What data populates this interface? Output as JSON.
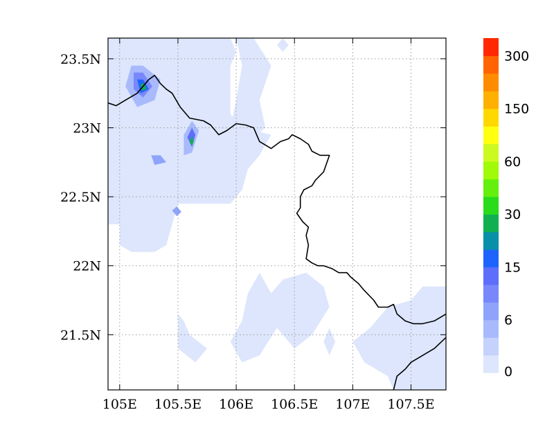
{
  "chart_data": {
    "type": "heatmap",
    "title": "",
    "xlabel": "",
    "ylabel": "",
    "xlim": [
      104.9,
      107.8
    ],
    "ylim": [
      21.1,
      23.65
    ],
    "x_ticks": [
      {
        "value": 105.0,
        "label": "105E"
      },
      {
        "value": 105.5,
        "label": "105.5E"
      },
      {
        "value": 106.0,
        "label": "106E"
      },
      {
        "value": 106.5,
        "label": "106.5E"
      },
      {
        "value": 107.0,
        "label": "107E"
      },
      {
        "value": 107.5,
        "label": "107.5E"
      }
    ],
    "y_ticks": [
      {
        "value": 21.5,
        "label": "21.5N"
      },
      {
        "value": 22.0,
        "label": "22N"
      },
      {
        "value": 22.5,
        "label": "22.5N"
      },
      {
        "value": 23.0,
        "label": "23N"
      },
      {
        "value": 23.5,
        "label": "23.5N"
      }
    ],
    "grid": true,
    "colorbar": {
      "placement": "right",
      "colors": [
        "#dde6fc",
        "#c4d2fc",
        "#a8bafc",
        "#8ea4fc",
        "#7888fc",
        "#5e6efc",
        "#1e64fc",
        "#0890a8",
        "#10b050",
        "#28dc1c",
        "#64f00c",
        "#a0fa08",
        "#ccfa20",
        "#ffff10",
        "#ffd800",
        "#ffb000",
        "#ff8c00",
        "#ff6400",
        "#ff2800"
      ],
      "labels": [
        {
          "value": 0,
          "label": "0"
        },
        {
          "value": 6,
          "label": "6"
        },
        {
          "value": 15,
          "label": "15"
        },
        {
          "value": 30,
          "label": "30"
        },
        {
          "value": 60,
          "label": "60"
        },
        {
          "value": 150,
          "label": "150"
        },
        {
          "value": 300,
          "label": "300"
        }
      ]
    },
    "regions": [
      {
        "name": "northwest",
        "level": 0,
        "points": [
          [
            104.9,
            23.65
          ],
          [
            105.95,
            23.65
          ],
          [
            106.0,
            23.55
          ],
          [
            105.95,
            23.45
          ],
          [
            105.95,
            23.1
          ],
          [
            106.05,
            23.0
          ],
          [
            106.3,
            22.95
          ],
          [
            106.2,
            22.8
          ],
          [
            106.1,
            22.7
          ],
          [
            106.05,
            22.55
          ],
          [
            105.95,
            22.45
          ],
          [
            105.5,
            22.45
          ],
          [
            105.45,
            22.3
          ],
          [
            105.4,
            22.15
          ],
          [
            105.3,
            22.1
          ],
          [
            105.1,
            22.1
          ],
          [
            105.0,
            22.15
          ],
          [
            105.0,
            22.3
          ],
          [
            104.9,
            22.3
          ]
        ]
      },
      {
        "name": "north-hole-blob",
        "level": 0,
        "points": [
          [
            106.0,
            23.65
          ],
          [
            106.15,
            23.65
          ],
          [
            106.3,
            23.45
          ],
          [
            106.2,
            23.2
          ],
          [
            106.25,
            23.0
          ],
          [
            106.1,
            22.9
          ],
          [
            105.95,
            23.0
          ],
          [
            106.0,
            23.2
          ],
          [
            106.05,
            23.45
          ]
        ]
      },
      {
        "name": "north-islet",
        "level": 0,
        "points": [
          [
            106.35,
            23.6
          ],
          [
            106.4,
            23.65
          ],
          [
            106.45,
            23.6
          ],
          [
            106.4,
            23.55
          ]
        ]
      },
      {
        "name": "southwest-patch",
        "level": 0,
        "points": [
          [
            105.5,
            21.65
          ],
          [
            105.55,
            21.6
          ],
          [
            105.6,
            21.5
          ],
          [
            105.75,
            21.4
          ],
          [
            105.65,
            21.3
          ],
          [
            105.5,
            21.4
          ]
        ]
      },
      {
        "name": "south-central-patch",
        "level": 0,
        "points": [
          [
            105.95,
            21.45
          ],
          [
            106.05,
            21.3
          ],
          [
            106.2,
            21.35
          ],
          [
            106.35,
            21.55
          ],
          [
            106.5,
            21.4
          ],
          [
            106.65,
            21.5
          ],
          [
            106.8,
            21.7
          ],
          [
            106.75,
            21.85
          ],
          [
            106.6,
            21.95
          ],
          [
            106.4,
            21.9
          ],
          [
            106.3,
            21.8
          ],
          [
            106.2,
            21.95
          ],
          [
            106.1,
            21.8
          ],
          [
            106.05,
            21.6
          ]
        ]
      },
      {
        "name": "south-mid-patch",
        "level": 0,
        "points": [
          [
            106.75,
            21.45
          ],
          [
            106.8,
            21.35
          ],
          [
            106.85,
            21.45
          ],
          [
            106.8,
            21.55
          ]
        ]
      },
      {
        "name": "southeast-patch",
        "level": 0,
        "points": [
          [
            107.8,
            21.85
          ],
          [
            107.6,
            21.85
          ],
          [
            107.5,
            21.75
          ],
          [
            107.3,
            21.7
          ],
          [
            107.15,
            21.55
          ],
          [
            107.0,
            21.45
          ],
          [
            107.1,
            21.3
          ],
          [
            107.3,
            21.2
          ],
          [
            107.35,
            21.1
          ],
          [
            107.8,
            21.1
          ]
        ]
      },
      {
        "name": "core-a-1",
        "level": 2,
        "points": [
          [
            105.1,
            23.45
          ],
          [
            105.2,
            23.45
          ],
          [
            105.35,
            23.35
          ],
          [
            105.3,
            23.2
          ],
          [
            105.15,
            23.15
          ],
          [
            105.05,
            23.3
          ]
        ]
      },
      {
        "name": "core-a-2",
        "level": 4,
        "points": [
          [
            105.12,
            23.4
          ],
          [
            105.2,
            23.4
          ],
          [
            105.28,
            23.3
          ],
          [
            105.2,
            23.22
          ],
          [
            105.12,
            23.28
          ]
        ]
      },
      {
        "name": "core-a-3",
        "level": 6,
        "points": [
          [
            105.15,
            23.35
          ],
          [
            105.2,
            23.35
          ],
          [
            105.25,
            23.28
          ],
          [
            105.18,
            23.25
          ]
        ]
      },
      {
        "name": "core-a-4",
        "level": 8,
        "points": [
          [
            105.18,
            23.32
          ],
          [
            105.21,
            23.32
          ],
          [
            105.23,
            23.28
          ],
          [
            105.19,
            23.27
          ]
        ]
      },
      {
        "name": "core-b-1",
        "level": 2,
        "points": [
          [
            105.55,
            22.95
          ],
          [
            105.62,
            23.05
          ],
          [
            105.68,
            22.98
          ],
          [
            105.62,
            22.82
          ],
          [
            105.55,
            22.8
          ]
        ]
      },
      {
        "name": "core-b-2",
        "level": 5,
        "points": [
          [
            105.58,
            22.93
          ],
          [
            105.62,
            23.0
          ],
          [
            105.65,
            22.95
          ],
          [
            105.62,
            22.86
          ]
        ]
      },
      {
        "name": "core-b-3",
        "level": 8,
        "points": [
          [
            105.6,
            22.9
          ],
          [
            105.62,
            22.94
          ],
          [
            105.635,
            22.9
          ],
          [
            105.62,
            22.87
          ]
        ]
      },
      {
        "name": "core-c-1",
        "level": 3,
        "points": [
          [
            105.27,
            22.8
          ],
          [
            105.35,
            22.8
          ],
          [
            105.4,
            22.75
          ],
          [
            105.3,
            22.73
          ]
        ]
      },
      {
        "name": "core-d-1",
        "level": 3,
        "points": [
          [
            105.45,
            22.4
          ],
          [
            105.49,
            22.43
          ],
          [
            105.53,
            22.39
          ],
          [
            105.49,
            22.36
          ]
        ]
      }
    ],
    "boundary": [
      [
        104.9,
        23.18
      ],
      [
        104.97,
        23.16
      ],
      [
        105.05,
        23.2
      ],
      [
        105.15,
        23.25
      ],
      [
        105.2,
        23.3
      ],
      [
        105.25,
        23.35
      ],
      [
        105.3,
        23.38
      ],
      [
        105.35,
        23.32
      ],
      [
        105.4,
        23.28
      ],
      [
        105.45,
        23.25
      ],
      [
        105.52,
        23.15
      ],
      [
        105.6,
        23.07
      ],
      [
        105.72,
        23.05
      ],
      [
        105.78,
        23.02
      ],
      [
        105.85,
        22.95
      ],
      [
        105.92,
        22.98
      ],
      [
        106.0,
        23.03
      ],
      [
        106.08,
        23.02
      ],
      [
        106.15,
        23.0
      ],
      [
        106.2,
        22.9
      ],
      [
        106.3,
        22.85
      ],
      [
        106.38,
        22.9
      ],
      [
        106.45,
        22.92
      ],
      [
        106.48,
        22.95
      ],
      [
        106.55,
        22.92
      ],
      [
        106.62,
        22.88
      ],
      [
        106.65,
        22.83
      ],
      [
        106.72,
        22.8
      ],
      [
        106.8,
        22.8
      ],
      [
        106.75,
        22.68
      ],
      [
        106.68,
        22.62
      ],
      [
        106.65,
        22.58
      ],
      [
        106.58,
        22.55
      ],
      [
        106.55,
        22.5
      ],
      [
        106.55,
        22.42
      ],
      [
        106.52,
        22.38
      ],
      [
        106.57,
        22.32
      ],
      [
        106.62,
        22.28
      ],
      [
        106.6,
        22.22
      ],
      [
        106.62,
        22.15
      ],
      [
        106.6,
        22.05
      ],
      [
        106.65,
        22.02
      ],
      [
        106.7,
        22.0
      ],
      [
        106.75,
        22.0
      ],
      [
        106.82,
        21.98
      ],
      [
        106.88,
        21.95
      ],
      [
        106.95,
        21.95
      ],
      [
        106.98,
        21.92
      ],
      [
        107.05,
        21.87
      ],
      [
        107.1,
        21.82
      ],
      [
        107.18,
        21.75
      ],
      [
        107.22,
        21.7
      ],
      [
        107.3,
        21.7
      ],
      [
        107.35,
        21.72
      ],
      [
        107.38,
        21.65
      ],
      [
        107.45,
        21.6
      ],
      [
        107.52,
        21.58
      ],
      [
        107.6,
        21.58
      ],
      [
        107.7,
        21.6
      ],
      [
        107.8,
        21.65
      ]
    ],
    "coastline": [
      [
        107.35,
        21.1
      ],
      [
        107.38,
        21.2
      ],
      [
        107.45,
        21.25
      ],
      [
        107.5,
        21.3
      ],
      [
        107.6,
        21.35
      ],
      [
        107.7,
        21.4
      ],
      [
        107.8,
        21.48
      ]
    ]
  }
}
